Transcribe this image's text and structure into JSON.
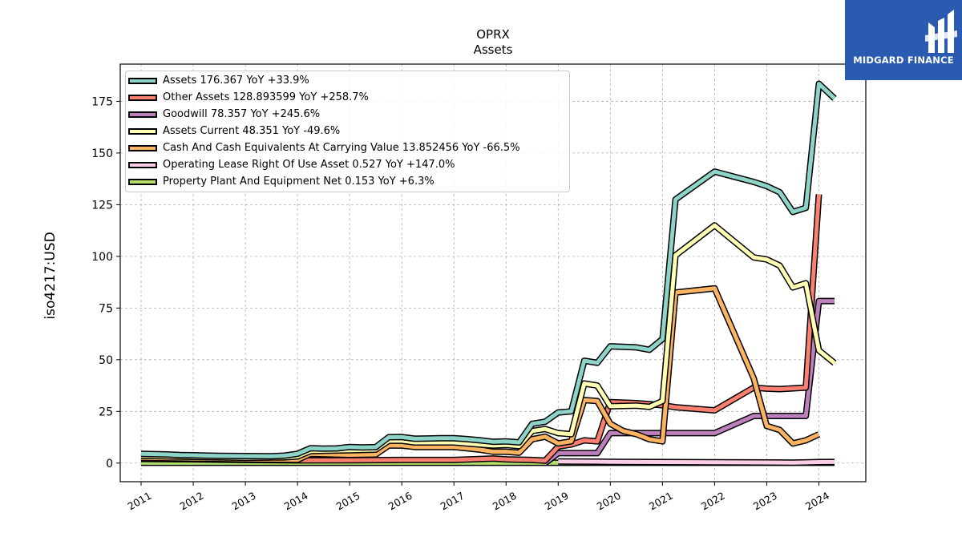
{
  "logo": {
    "text": "MIDGARD FINANCE",
    "color": "#2a5bb0"
  },
  "chart_data": {
    "type": "line",
    "title": "OPRX",
    "subtitle": "Assets",
    "ylabel": "iso4217:USD",
    "xlabel": "",
    "xlim": [
      2010.6,
      2024.9
    ],
    "ylim": [
      -9,
      193
    ],
    "yticks": [
      0,
      25,
      50,
      75,
      100,
      125,
      150,
      175
    ],
    "xticks": [
      "2011",
      "2012",
      "2013",
      "2014",
      "2015",
      "2016",
      "2017",
      "2018",
      "2019",
      "2020",
      "2021",
      "2022",
      "2023",
      "2024"
    ],
    "grid": true,
    "legend_position": "top-left",
    "series": [
      {
        "name": "Assets",
        "legend": "Assets  176.367 YoY +33.9%",
        "color": "#8dd3c7",
        "points": [
          [
            2011.0,
            4.5
          ],
          [
            2011.5,
            4.2
          ],
          [
            2011.75,
            3.9
          ],
          [
            2012.0,
            3.8
          ],
          [
            2012.5,
            3.5
          ],
          [
            2013.0,
            3.4
          ],
          [
            2013.5,
            3.3
          ],
          [
            2013.75,
            3.6
          ],
          [
            2014.0,
            4.5
          ],
          [
            2014.25,
            7.2
          ],
          [
            2014.5,
            7.0
          ],
          [
            2014.75,
            7.1
          ],
          [
            2015.0,
            7.8
          ],
          [
            2015.25,
            7.6
          ],
          [
            2015.5,
            7.7
          ],
          [
            2015.75,
            12.5
          ],
          [
            2016.0,
            12.6
          ],
          [
            2016.25,
            11.8
          ],
          [
            2016.5,
            11.9
          ],
          [
            2016.75,
            12.0
          ],
          [
            2017.0,
            12.0
          ],
          [
            2017.25,
            11.6
          ],
          [
            2017.5,
            11.0
          ],
          [
            2017.75,
            10.3
          ],
          [
            2018.0,
            10.5
          ],
          [
            2018.25,
            10.0
          ],
          [
            2018.5,
            19.0
          ],
          [
            2018.75,
            20.0
          ],
          [
            2019.0,
            24.5
          ],
          [
            2019.25,
            25.0
          ],
          [
            2019.5,
            49.5
          ],
          [
            2019.75,
            48.5
          ],
          [
            2020.0,
            56.5
          ],
          [
            2020.25,
            56.2
          ],
          [
            2020.5,
            56.0
          ],
          [
            2020.75,
            54.8
          ],
          [
            2021.0,
            60.0
          ],
          [
            2021.25,
            127.5
          ],
          [
            2022.0,
            141.0
          ],
          [
            2022.75,
            136.0
          ],
          [
            2023.0,
            134.0
          ],
          [
            2023.25,
            131.0
          ],
          [
            2023.5,
            121.5
          ],
          [
            2023.75,
            123.5
          ],
          [
            2024.0,
            183.5
          ],
          [
            2024.3,
            176.4
          ]
        ]
      },
      {
        "name": "Other Assets",
        "legend": "Other Assets  128.893599 YoY +258.7%",
        "color": "#fb8072",
        "points": [
          [
            2011.0,
            2.0
          ],
          [
            2012.0,
            1.8
          ],
          [
            2013.0,
            1.5
          ],
          [
            2014.0,
            1.3
          ],
          [
            2015.0,
            1.4
          ],
          [
            2016.0,
            1.5
          ],
          [
            2017.0,
            1.5
          ],
          [
            2017.75,
            2.2
          ],
          [
            2018.0,
            1.8
          ],
          [
            2018.5,
            1.5
          ],
          [
            2018.75,
            1.2
          ],
          [
            2019.0,
            8.0
          ],
          [
            2019.25,
            9.0
          ],
          [
            2019.5,
            11.0
          ],
          [
            2019.75,
            10.5
          ],
          [
            2020.0,
            29.5
          ],
          [
            2020.5,
            29.0
          ],
          [
            2021.0,
            28.0
          ],
          [
            2021.25,
            27.0
          ],
          [
            2022.0,
            25.5
          ],
          [
            2022.75,
            36.5
          ],
          [
            2023.0,
            36.0
          ],
          [
            2023.25,
            35.8
          ],
          [
            2023.75,
            36.5
          ],
          [
            2024.0,
            130.0
          ]
        ]
      },
      {
        "name": "Goodwill",
        "legend": "Goodwill  78.357 YoY +245.6%",
        "color": "#bc80bd",
        "points": [
          [
            2018.75,
            0.0
          ],
          [
            2019.0,
            4.8
          ],
          [
            2019.75,
            4.8
          ],
          [
            2020.0,
            14.5
          ],
          [
            2021.0,
            14.5
          ],
          [
            2022.0,
            14.5
          ],
          [
            2022.75,
            22.8
          ],
          [
            2023.75,
            22.8
          ],
          [
            2024.0,
            78.4
          ],
          [
            2024.3,
            78.4
          ]
        ]
      },
      {
        "name": "Assets Current",
        "legend": "Assets Current  48.351 YoY -49.6%",
        "color": "#ffffb3",
        "points": [
          [
            2011.0,
            3.5
          ],
          [
            2012.0,
            3.0
          ],
          [
            2013.0,
            2.6
          ],
          [
            2013.75,
            2.8
          ],
          [
            2014.0,
            3.2
          ],
          [
            2014.25,
            5.8
          ],
          [
            2015.0,
            6.2
          ],
          [
            2015.5,
            6.5
          ],
          [
            2015.75,
            10.8
          ],
          [
            2016.0,
            10.8
          ],
          [
            2016.25,
            10.0
          ],
          [
            2017.0,
            10.0
          ],
          [
            2017.5,
            9.0
          ],
          [
            2017.75,
            8.5
          ],
          [
            2018.0,
            8.8
          ],
          [
            2018.25,
            8.2
          ],
          [
            2018.5,
            15.5
          ],
          [
            2018.75,
            16.5
          ],
          [
            2019.0,
            14.5
          ],
          [
            2019.25,
            14.0
          ],
          [
            2019.5,
            38.5
          ],
          [
            2019.75,
            37.5
          ],
          [
            2020.0,
            27.5
          ],
          [
            2020.5,
            27.8
          ],
          [
            2020.75,
            27.2
          ],
          [
            2021.0,
            30.0
          ],
          [
            2021.25,
            100.5
          ],
          [
            2022.0,
            115.0
          ],
          [
            2022.75,
            99.5
          ],
          [
            2023.0,
            98.5
          ],
          [
            2023.25,
            95.5
          ],
          [
            2023.5,
            85.0
          ],
          [
            2023.75,
            87.0
          ],
          [
            2024.0,
            54.5
          ],
          [
            2024.3,
            48.4
          ]
        ]
      },
      {
        "name": "Cash And Cash Equivalents At Carrying Value",
        "legend": "Cash And Cash Equivalents At Carrying Value  13.852456 YoY -66.5%",
        "color": "#fdb462",
        "points": [
          [
            2011.0,
            2.5
          ],
          [
            2012.0,
            2.2
          ],
          [
            2013.0,
            1.8
          ],
          [
            2014.0,
            1.6
          ],
          [
            2014.25,
            4.5
          ],
          [
            2015.0,
            4.0
          ],
          [
            2015.5,
            4.2
          ],
          [
            2015.75,
            8.5
          ],
          [
            2016.0,
            8.5
          ],
          [
            2016.25,
            7.8
          ],
          [
            2017.0,
            7.8
          ],
          [
            2017.5,
            6.5
          ],
          [
            2017.75,
            5.5
          ],
          [
            2018.0,
            5.5
          ],
          [
            2018.25,
            5.0
          ],
          [
            2018.5,
            11.5
          ],
          [
            2018.75,
            12.8
          ],
          [
            2019.0,
            9.5
          ],
          [
            2019.25,
            10.5
          ],
          [
            2019.5,
            30.5
          ],
          [
            2019.75,
            30.0
          ],
          [
            2020.0,
            19.0
          ],
          [
            2020.25,
            15.5
          ],
          [
            2020.5,
            14.0
          ],
          [
            2020.75,
            11.5
          ],
          [
            2021.0,
            10.5
          ],
          [
            2021.25,
            82.5
          ],
          [
            2022.0,
            84.5
          ],
          [
            2022.75,
            41.0
          ],
          [
            2023.0,
            18.0
          ],
          [
            2023.25,
            16.0
          ],
          [
            2023.5,
            9.5
          ],
          [
            2023.75,
            11.0
          ],
          [
            2024.0,
            13.9
          ]
        ]
      },
      {
        "name": "Operating Lease Right Of Use Asset",
        "legend": "Operating Lease Right Of Use Asset  0.527 YoY +147.0%",
        "color": "#fccde5",
        "points": [
          [
            2019.0,
            0.8
          ],
          [
            2019.75,
            0.7
          ],
          [
            2020.0,
            0.6
          ],
          [
            2021.0,
            0.5
          ],
          [
            2022.0,
            0.4
          ],
          [
            2023.0,
            0.3
          ],
          [
            2023.5,
            0.2
          ],
          [
            2024.0,
            0.5
          ],
          [
            2024.3,
            0.53
          ]
        ]
      },
      {
        "name": "Property Plant And Equipment Net",
        "legend": "Property Plant And Equipment Net  0.153 YoY +6.3%",
        "color": "#b3de69",
        "points": [
          [
            2011.0,
            0.15
          ],
          [
            2014.0,
            0.15
          ],
          [
            2017.0,
            0.15
          ],
          [
            2019.0,
            0.15
          ],
          [
            2021.0,
            0.14
          ],
          [
            2023.0,
            0.15
          ],
          [
            2024.0,
            0.15
          ],
          [
            2024.3,
            0.153
          ]
        ]
      }
    ]
  }
}
